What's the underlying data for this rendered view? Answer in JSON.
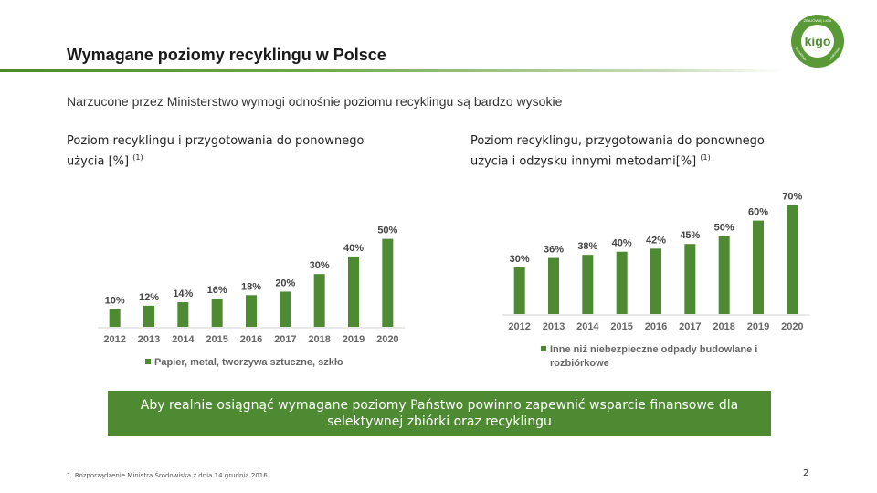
{
  "header": {
    "title": "Wymagane poziomy recyklingu w Polsce",
    "logo_text_top": "ZBAJÓWIĘ LIGA",
    "logo_text_main": "kigo",
    "logo_text_left": "Recyklingu",
    "logo_text_right": "Opakowań"
  },
  "subtitle": "Narzucone przez Ministerstwo wymogi odnośnie poziomu recyklingu są bardzo wysokie",
  "left_chart_label": {
    "line1": "Poziom recyklingu i przygotowania do ponownego",
    "line2": "użycia [%]",
    "note": "(1)"
  },
  "right_chart_label": {
    "line1": "Poziom recyklingu, przygotowania do ponownego",
    "line2": "użycia i odzysku innymi metodami[%]",
    "note": "(1)"
  },
  "chart_data": [
    {
      "type": "bar",
      "categories": [
        "2012",
        "2013",
        "2014",
        "2015",
        "2016",
        "2017",
        "2018",
        "2019",
        "2020"
      ],
      "values": [
        10,
        12,
        14,
        16,
        18,
        20,
        30,
        40,
        50
      ],
      "data_labels": [
        "10%",
        "12%",
        "14%",
        "16%",
        "18%",
        "20%",
        "30%",
        "40%",
        "50%"
      ],
      "legend": "Papier, metal, tworzywa sztuczne, szkło",
      "ylim": [
        0,
        55
      ],
      "color": "#4e8a32"
    },
    {
      "type": "bar",
      "categories": [
        "2012",
        "2013",
        "2014",
        "2015",
        "2016",
        "2017",
        "2018",
        "2019",
        "2020"
      ],
      "values": [
        30,
        36,
        38,
        40,
        42,
        45,
        50,
        60,
        70
      ],
      "data_labels": [
        "30%",
        "36%",
        "38%",
        "40%",
        "42%",
        "45%",
        "50%",
        "60%",
        "70%"
      ],
      "legend_line1": "Inne niż niebezpieczne odpady budowlane i",
      "legend_line2": "rozbiórkowe",
      "ylim": [
        0,
        75
      ],
      "color": "#4e8a32"
    }
  ],
  "banner": "Aby realnie osiągnąć wymagane poziomy Państwo powinno zapewnić wsparcie finansowe dla selektywnej zbiórki oraz recyklingu",
  "footnote": "1. Rozporządzenie Ministra Środowiska z dnia 14 grudnia 2016",
  "page_number": "2"
}
